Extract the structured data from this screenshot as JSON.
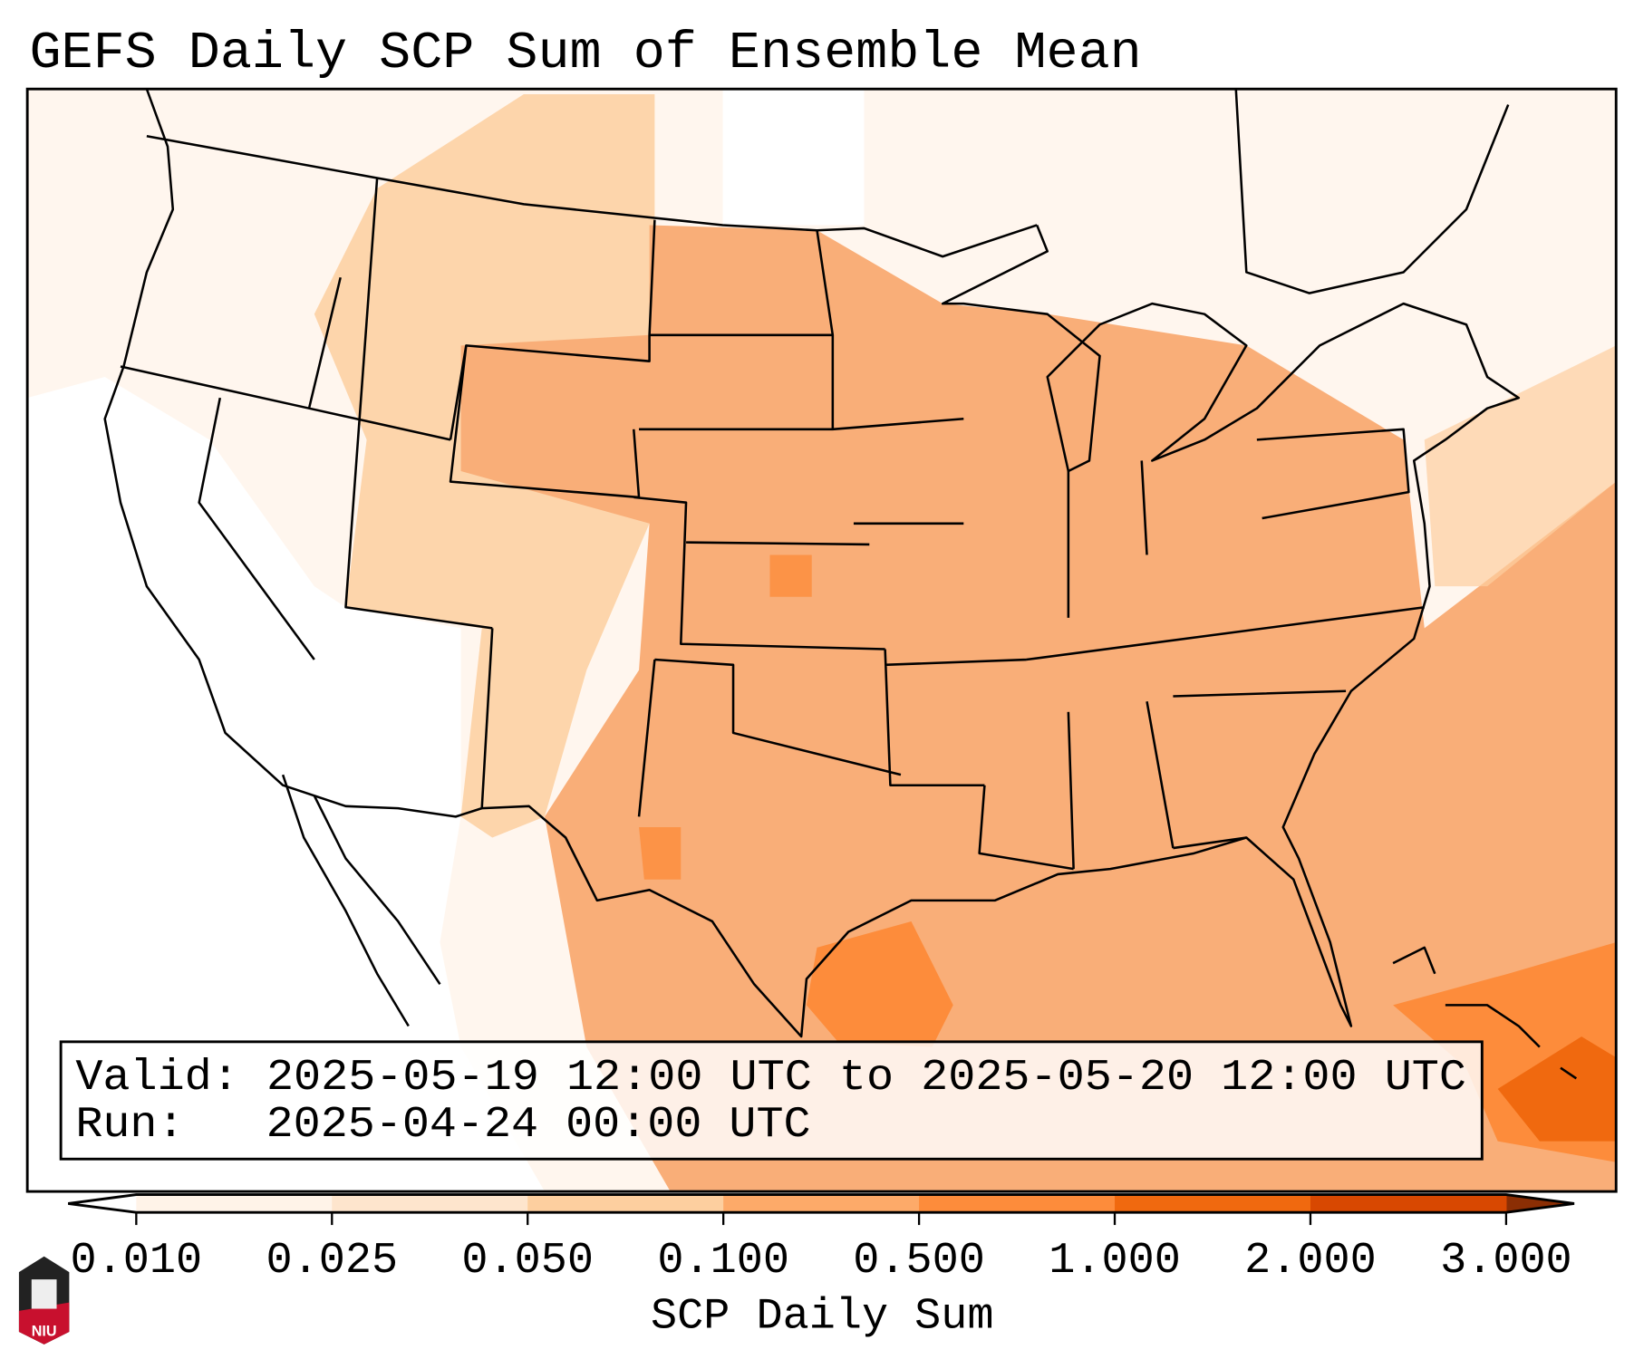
{
  "title": "GEFS Daily SCP Sum of Ensemble Mean",
  "info_box": {
    "valid_line": "Valid: 2025-05-19 12:00 UTC to 2025-05-20 12:00 UTC",
    "run_line": "Run:   2025-04-24 00:00 UTC"
  },
  "colorbar": {
    "label": "SCP Daily Sum",
    "ticks": [
      "0.010",
      "0.025",
      "0.050",
      "0.100",
      "0.500",
      "1.000",
      "2.000",
      "3.000"
    ],
    "colors": [
      "#fff3e8",
      "#fee5cd",
      "#fdcf9f",
      "#fdaa69",
      "#fd8c3b",
      "#f0690f",
      "#d84801"
    ],
    "under_color": "#ffffff",
    "over_color": "#8b2e04"
  },
  "logo": {
    "text": "NIU"
  }
}
